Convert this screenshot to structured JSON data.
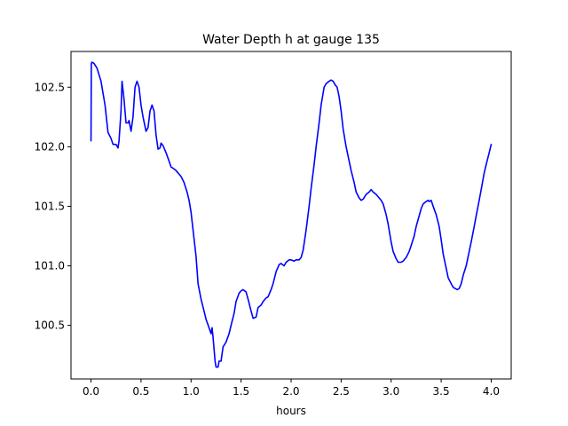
{
  "chart_data": {
    "type": "line",
    "title": "Water Depth h at gauge 135",
    "xlabel": "hours",
    "ylabel": "",
    "xlim": [
      -0.2,
      4.2
    ],
    "ylim": [
      100.05,
      102.8
    ],
    "x_ticks": [
      0.0,
      0.5,
      1.0,
      1.5,
      2.0,
      2.5,
      3.0,
      3.5,
      4.0
    ],
    "x_tick_labels": [
      "0.0",
      "0.5",
      "1.0",
      "1.5",
      "2.0",
      "2.5",
      "3.0",
      "3.5",
      "4.0"
    ],
    "y_ticks": [
      100.5,
      101.0,
      101.5,
      102.0,
      102.5
    ],
    "y_tick_labels": [
      "100.5",
      "101.0",
      "101.5",
      "102.0",
      "102.5"
    ],
    "grid": false,
    "series": [
      {
        "color": "#0000ff",
        "x": [
          0.0,
          0.003,
          0.01,
          0.03,
          0.06,
          0.1,
          0.14,
          0.17,
          0.2,
          0.22,
          0.25,
          0.27,
          0.28,
          0.3,
          0.31,
          0.33,
          0.35,
          0.37,
          0.38,
          0.4,
          0.42,
          0.44,
          0.46,
          0.48,
          0.5,
          0.52,
          0.55,
          0.57,
          0.59,
          0.61,
          0.63,
          0.65,
          0.67,
          0.69,
          0.7,
          0.72,
          0.75,
          0.78,
          0.8,
          0.82,
          0.85,
          0.88,
          0.9,
          0.93,
          0.96,
          0.98,
          1.0,
          1.02,
          1.05,
          1.07,
          1.1,
          1.13,
          1.15,
          1.18,
          1.2,
          1.21,
          1.22,
          1.24,
          1.25,
          1.27,
          1.28,
          1.3,
          1.32,
          1.35,
          1.38,
          1.4,
          1.43,
          1.45,
          1.48,
          1.5,
          1.52,
          1.55,
          1.57,
          1.6,
          1.62,
          1.65,
          1.67,
          1.7,
          1.72,
          1.75,
          1.77,
          1.8,
          1.82,
          1.85,
          1.88,
          1.9,
          1.93,
          1.95,
          1.98,
          2.0,
          2.03,
          2.05,
          2.08,
          2.1,
          2.12,
          2.15,
          2.18,
          2.2,
          2.23,
          2.25,
          2.28,
          2.3,
          2.33,
          2.35,
          2.38,
          2.4,
          2.42,
          2.44,
          2.46,
          2.48,
          2.5,
          2.52,
          2.55,
          2.58,
          2.6,
          2.63,
          2.65,
          2.68,
          2.7,
          2.72,
          2.75,
          2.78,
          2.8,
          2.82,
          2.85,
          2.88,
          2.9,
          2.92,
          2.95,
          2.97,
          3.0,
          3.02,
          3.05,
          3.07,
          3.1,
          3.12,
          3.15,
          3.18,
          3.2,
          3.23,
          3.25,
          3.28,
          3.3,
          3.32,
          3.35,
          3.37,
          3.38,
          3.4,
          3.42,
          3.45,
          3.48,
          3.5,
          3.52,
          3.55,
          3.57,
          3.6,
          3.62,
          3.64,
          3.66,
          3.68,
          3.7,
          3.72,
          3.75,
          3.78,
          3.8,
          3.83,
          3.85,
          3.88,
          3.9,
          3.93,
          3.95,
          3.98,
          4.0
        ],
        "y": [
          102.05,
          102.7,
          102.71,
          102.7,
          102.66,
          102.55,
          102.35,
          102.12,
          102.07,
          102.02,
          102.02,
          101.99,
          102.05,
          102.3,
          102.55,
          102.4,
          102.2,
          102.2,
          102.22,
          102.13,
          102.25,
          102.5,
          102.55,
          102.5,
          102.35,
          102.25,
          102.13,
          102.16,
          102.3,
          102.35,
          102.3,
          102.1,
          101.98,
          101.99,
          102.03,
          102.01,
          101.95,
          101.88,
          101.83,
          101.82,
          101.8,
          101.77,
          101.75,
          101.7,
          101.62,
          101.55,
          101.45,
          101.3,
          101.08,
          100.85,
          100.72,
          100.62,
          100.55,
          100.48,
          100.43,
          100.48,
          100.4,
          100.2,
          100.15,
          100.15,
          100.2,
          100.2,
          100.32,
          100.36,
          100.43,
          100.5,
          100.6,
          100.7,
          100.77,
          100.79,
          100.8,
          100.78,
          100.72,
          100.62,
          100.56,
          100.57,
          100.65,
          100.67,
          100.7,
          100.73,
          100.74,
          100.8,
          100.85,
          100.95,
          101.01,
          101.02,
          101.0,
          101.03,
          101.05,
          101.05,
          101.04,
          101.05,
          101.05,
          101.07,
          101.13,
          101.3,
          101.5,
          101.65,
          101.85,
          102.0,
          102.2,
          102.35,
          102.5,
          102.53,
          102.55,
          102.56,
          102.55,
          102.52,
          102.5,
          102.42,
          102.3,
          102.15,
          102.0,
          101.88,
          101.8,
          101.7,
          101.62,
          101.57,
          101.55,
          101.56,
          101.6,
          101.62,
          101.64,
          101.62,
          101.6,
          101.57,
          101.55,
          101.52,
          101.43,
          101.35,
          101.2,
          101.12,
          101.06,
          101.03,
          101.03,
          101.04,
          101.07,
          101.12,
          101.17,
          101.25,
          101.33,
          101.42,
          101.48,
          101.52,
          101.54,
          101.55,
          101.54,
          101.55,
          101.5,
          101.43,
          101.33,
          101.22,
          101.1,
          100.98,
          100.9,
          100.85,
          100.82,
          100.81,
          100.8,
          100.81,
          100.85,
          100.92,
          101.0,
          101.12,
          101.2,
          101.33,
          101.42,
          101.55,
          101.64,
          101.78,
          101.85,
          101.95,
          102.02
        ]
      }
    ]
  }
}
